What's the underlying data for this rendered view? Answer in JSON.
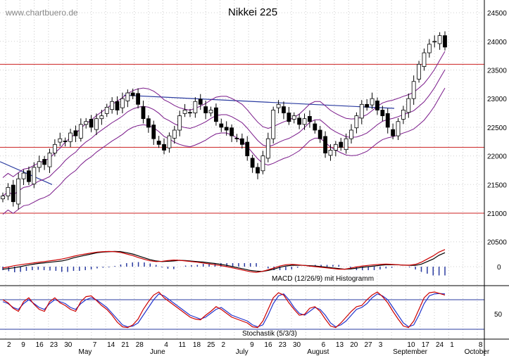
{
  "watermark": "www.chartbuero.de",
  "chart_data": [
    {
      "type": "candlestick",
      "title": "Nikkei 225",
      "yticks": [
        21000,
        21500,
        22000,
        22500,
        23000,
        23500,
        24000,
        24500
      ],
      "extra_ytick": 20500,
      "ylim": [
        20300,
        24550
      ],
      "horizontal_levels": [
        23600,
        22150,
        21000
      ],
      "trendlines": [
        {
          "x1": 0,
          "y1": 21900,
          "x2": 74,
          "y2": 21500
        },
        {
          "x1": 176,
          "y1": 23060,
          "x2": 560,
          "y2": 22830
        }
      ],
      "x_dates": [
        "2",
        "9",
        "16",
        "23",
        "30",
        "May",
        "7",
        "14",
        "21",
        "28",
        "June",
        "4",
        "11",
        "18",
        "25",
        "2",
        "July",
        "9",
        "16",
        "23",
        "30",
        "August",
        "6",
        "13",
        "20",
        "27",
        "3",
        "September",
        "10",
        "17",
        "24",
        "1",
        "October",
        "8"
      ],
      "closes": [
        21300,
        21450,
        21200,
        21600,
        21700,
        21550,
        21800,
        21900,
        21850,
        22050,
        22200,
        22300,
        22250,
        22400,
        22350,
        22550,
        22600,
        22500,
        22650,
        22700,
        22850,
        22950,
        22800,
        23000,
        23100,
        23050,
        22900,
        22650,
        22500,
        22300,
        22200,
        22100,
        22350,
        22450,
        22700,
        22800,
        22750,
        22950,
        22900,
        22750,
        22800,
        22600,
        22500,
        22450,
        22350,
        22300,
        22200,
        22000,
        21800,
        21700,
        22000,
        22300,
        22800,
        22900,
        22750,
        22600,
        22700,
        22550,
        22650,
        22600,
        22450,
        22300,
        22050,
        22100,
        22200,
        22150,
        22300,
        22450,
        22700,
        22900,
        22850,
        23000,
        22800,
        22700,
        22500,
        22350,
        22600,
        22800,
        23000,
        23300,
        23600,
        23800,
        23950,
        24000,
        24100,
        23900
      ]
    },
    {
      "type": "line",
      "title": "MACD (12/26/9) mit Histogramm",
      "ytick": 0,
      "series": [
        {
          "color": "#000000",
          "values": [
            -20,
            -15,
            -8,
            0,
            10,
            18,
            25,
            30,
            35,
            40,
            45,
            55,
            70,
            80,
            90,
            100,
            110,
            115,
            118,
            120,
            118,
            110,
            100,
            85,
            70,
            55,
            45,
            40,
            42,
            45,
            50,
            48,
            44,
            40,
            36,
            30,
            25,
            18,
            10,
            0,
            -10,
            -20,
            -30,
            -35,
            -38,
            -30,
            -20,
            -5,
            5,
            10,
            12,
            10,
            8,
            5,
            0,
            -5,
            -10,
            -15,
            -20,
            -18,
            -12,
            -5,
            0,
            5,
            10,
            15,
            15,
            15,
            12,
            10,
            10,
            20,
            40,
            60,
            90,
            110
          ]
        },
        {
          "color": "#cc0000",
          "values": [
            -10,
            -2,
            8,
            15,
            22,
            28,
            34,
            40,
            46,
            52,
            60,
            70,
            82,
            92,
            100,
            108,
            115,
            118,
            120,
            118,
            112,
            100,
            88,
            72,
            58,
            46,
            40,
            42,
            48,
            52,
            50,
            45,
            40,
            35,
            28,
            22,
            15,
            8,
            0,
            -10,
            -20,
            -30,
            -40,
            -45,
            -38,
            -25,
            -10,
            5,
            15,
            18,
            15,
            10,
            5,
            0,
            -5,
            -10,
            -15,
            -20,
            -20,
            -12,
            -2,
            5,
            10,
            15,
            18,
            20,
            18,
            15,
            12,
            12,
            18,
            35,
            60,
            85,
            115,
            135
          ]
        }
      ]
    },
    {
      "type": "line",
      "title": "Stochastik (5/3/3)",
      "ytick": 50,
      "series": [
        {
          "color": "#2233cc",
          "values": [
            75,
            70,
            60,
            55,
            70,
            80,
            70,
            60,
            55,
            70,
            80,
            75,
            70,
            60,
            55,
            70,
            80,
            85,
            80,
            70,
            60,
            45,
            30,
            15,
            10,
            12,
            20,
            40,
            60,
            80,
            95,
            90,
            80,
            70,
            60,
            50,
            40,
            35,
            30,
            35,
            45,
            55,
            60,
            50,
            40,
            35,
            30,
            25,
            15,
            10,
            15,
            40,
            70,
            90,
            95,
            80,
            60,
            45,
            40,
            50,
            60,
            55,
            40,
            20,
            10,
            15,
            25,
            40,
            55,
            60,
            70,
            85,
            95,
            90,
            80,
            60,
            40,
            20,
            10,
            15,
            40,
            70,
            90,
            95,
            96,
            95
          ]
        },
        {
          "color": "#cc0000",
          "values": [
            80,
            72,
            58,
            50,
            75,
            85,
            68,
            55,
            50,
            75,
            85,
            72,
            65,
            55,
            50,
            75,
            88,
            90,
            78,
            65,
            55,
            40,
            22,
            10,
            8,
            15,
            30,
            55,
            75,
            92,
            100,
            85,
            75,
            65,
            55,
            45,
            35,
            30,
            28,
            40,
            50,
            62,
            55,
            45,
            35,
            30,
            25,
            20,
            10,
            8,
            25,
            55,
            85,
            98,
            92,
            72,
            55,
            40,
            42,
            58,
            62,
            50,
            30,
            12,
            8,
            20,
            35,
            50,
            62,
            65,
            80,
            92,
            100,
            88,
            72,
            50,
            30,
            12,
            8,
            25,
            55,
            85,
            98,
            100,
            96,
            92
          ]
        }
      ]
    }
  ]
}
